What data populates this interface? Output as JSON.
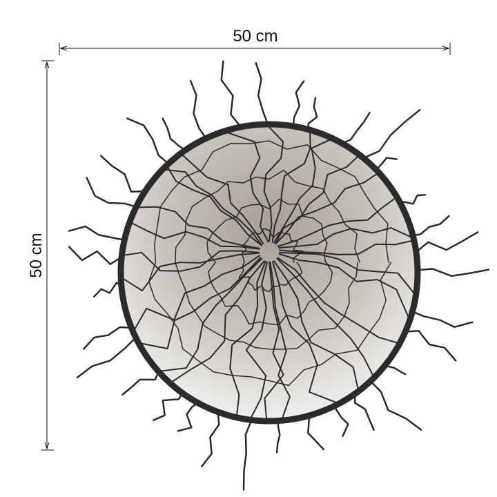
{
  "dimensions": {
    "width_label": "50 cm",
    "height_label": "50 cm"
  }
}
